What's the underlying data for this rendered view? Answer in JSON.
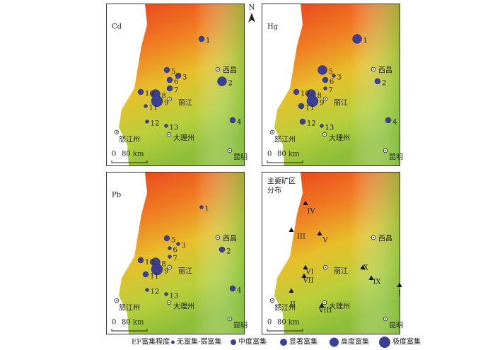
{
  "panels": [
    {
      "title": "Cd",
      "sites": [
        {
          "label": "1",
          "level": 1
        },
        {
          "label": "2",
          "level": 3
        },
        {
          "label": "3",
          "level": 1
        },
        {
          "label": "4",
          "level": 1
        },
        {
          "label": "5",
          "level": 1
        },
        {
          "label": "6",
          "level": 1
        },
        {
          "label": "7",
          "level": 1
        },
        {
          "label": "8",
          "level": 3
        },
        {
          "label": "9",
          "level": 4
        },
        {
          "label": "10",
          "level": 1
        },
        {
          "label": "11",
          "level": 0
        },
        {
          "label": "12",
          "level": 0
        },
        {
          "label": "13",
          "level": 0
        }
      ]
    },
    {
      "title": "Hg",
      "sites": [
        {
          "label": "1",
          "level": 3
        },
        {
          "label": "2",
          "level": 1
        },
        {
          "label": "3",
          "level": 0
        },
        {
          "label": "4",
          "level": 1
        },
        {
          "label": "5",
          "level": 3
        },
        {
          "label": "6",
          "level": 1
        },
        {
          "label": "7",
          "level": 0
        },
        {
          "label": "8",
          "level": 3
        },
        {
          "label": "9",
          "level": 4
        },
        {
          "label": "10",
          "level": 1
        },
        {
          "label": "11",
          "level": 1
        },
        {
          "label": "12",
          "level": 1
        },
        {
          "label": "13",
          "level": 0
        }
      ]
    },
    {
      "title": "Pb",
      "sites": [
        {
          "label": "1",
          "level": 0
        },
        {
          "label": "2",
          "level": 1
        },
        {
          "label": "3",
          "level": 0
        },
        {
          "label": "4",
          "level": 1
        },
        {
          "label": "5",
          "level": 1
        },
        {
          "label": "6",
          "level": 0
        },
        {
          "label": "7",
          "level": 0
        },
        {
          "label": "8",
          "level": 3
        },
        {
          "label": "9",
          "level": 4
        },
        {
          "label": "10",
          "level": 1
        },
        {
          "label": "11",
          "level": 1
        },
        {
          "label": "12",
          "level": 0
        },
        {
          "label": "13",
          "level": 0
        }
      ]
    }
  ],
  "mine_panel": {
    "title_lines": [
      "主要矿区",
      "分布"
    ],
    "areas": [
      "I",
      "II",
      "III",
      "IV",
      "V",
      "VI",
      "VII",
      "VIII",
      "IX",
      "X"
    ]
  },
  "cities": [
    "西昌",
    "丽江",
    "怒江州",
    "大理州",
    "昆明"
  ],
  "scale": {
    "zero": "0",
    "length": "80 km"
  },
  "north": "N",
  "legend": {
    "title": "EF富集程度",
    "classes": [
      "无富集-弱富集",
      "中度富集",
      "显著富集",
      "高度富集",
      "极度富集"
    ]
  }
}
